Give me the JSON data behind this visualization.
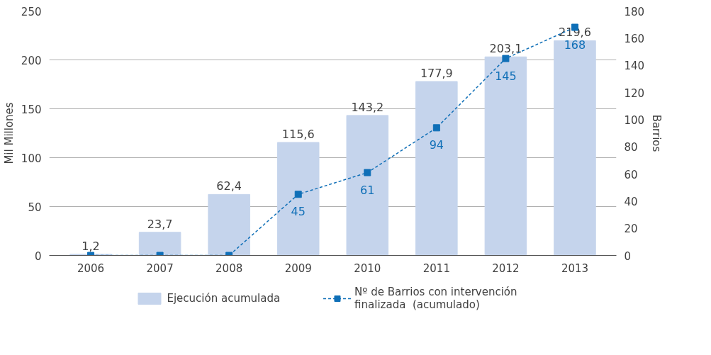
{
  "chart_data": {
    "type": "bar",
    "categories": [
      "2006",
      "2007",
      "2008",
      "2009",
      "2010",
      "2011",
      "2012",
      "2013"
    ],
    "ylabel": "Mil Millones",
    "y2label": "Barrios",
    "ylim": [
      0,
      250
    ],
    "yticks": [
      0,
      50,
      100,
      150,
      200,
      250
    ],
    "y2lim": [
      0,
      180
    ],
    "y2ticks": [
      0,
      20,
      40,
      60,
      80,
      100,
      120,
      140,
      160,
      180
    ],
    "grid": "y",
    "legend": "bottom",
    "series": [
      {
        "name": "Ejecución acumulada",
        "color": "#c5d4ec",
        "values": [
          1.2,
          23.7,
          62.4,
          115.6,
          143.2,
          177.9,
          203.1,
          219.6
        ],
        "value_labels": [
          "1,2",
          "23,7",
          "62,4",
          "115,6",
          "143,2",
          "177,9",
          "203,1",
          "219,6"
        ]
      },
      {
        "name": "Nº de Barrios con intervención\nfinalizada  (acumulado)",
        "type": "line",
        "axis": "y2",
        "color": "#0f6fb7",
        "marker": "square",
        "line_style": "dashed",
        "values": [
          0,
          0,
          0,
          45,
          61,
          94,
          145,
          168
        ],
        "value_labels": [
          null,
          null,
          null,
          "45",
          "61",
          "94",
          "145",
          "168"
        ]
      }
    ]
  }
}
